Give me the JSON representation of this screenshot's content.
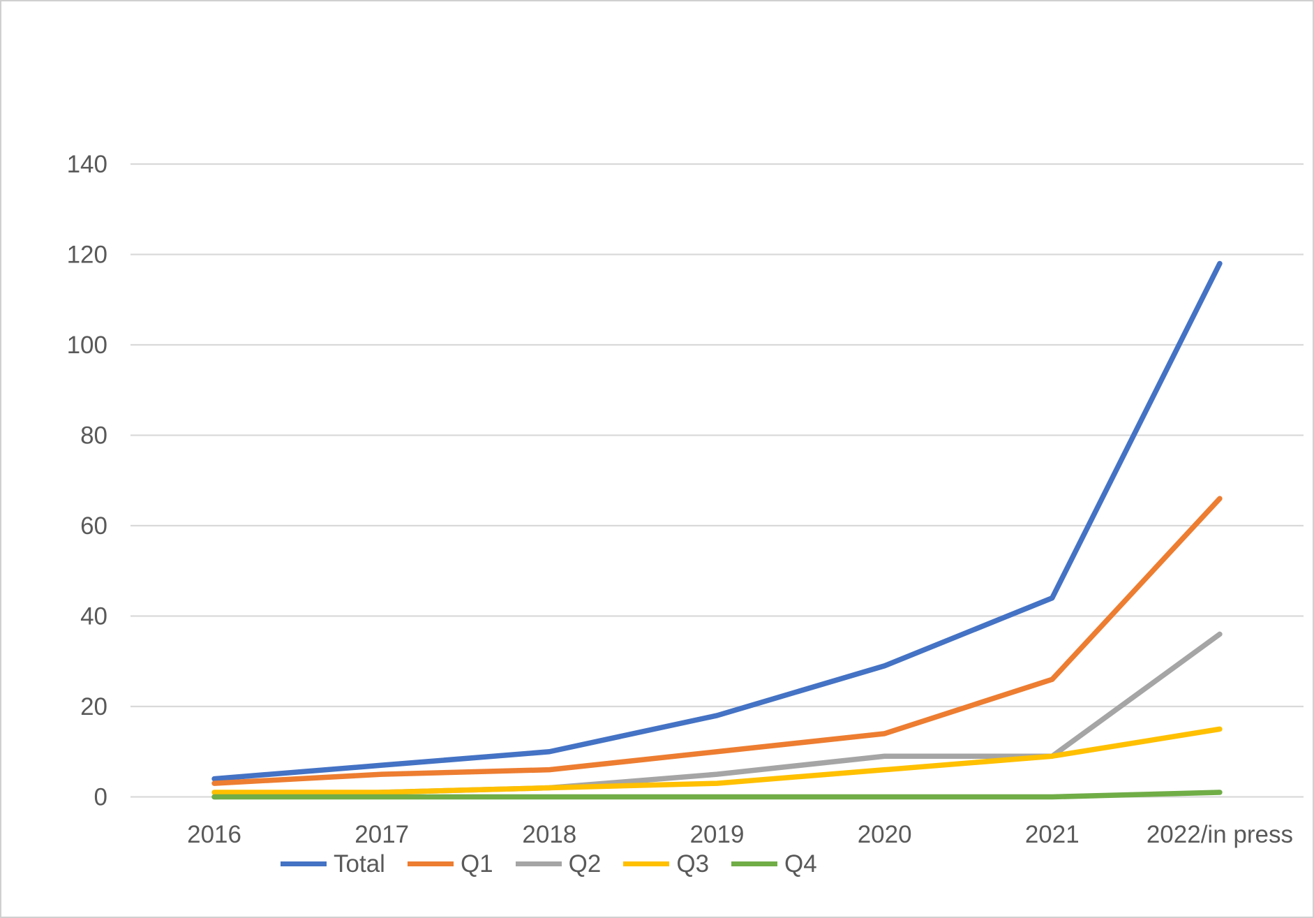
{
  "chart_data": {
    "type": "line",
    "title": "",
    "xlabel": "",
    "ylabel": "",
    "categories": [
      "2016",
      "2017",
      "2018",
      "2019",
      "2020",
      "2021",
      "2022/in press"
    ],
    "series": [
      {
        "name": "Total",
        "color": "#4472C4",
        "values": [
          4,
          7,
          10,
          18,
          29,
          44,
          118
        ]
      },
      {
        "name": "Q1",
        "color": "#ED7D31",
        "values": [
          3,
          5,
          6,
          10,
          14,
          26,
          66
        ]
      },
      {
        "name": "Q2",
        "color": "#A5A5A5",
        "values": [
          0,
          1,
          2,
          5,
          9,
          9,
          36
        ]
      },
      {
        "name": "Q3",
        "color": "#FFC000",
        "values": [
          1,
          1,
          2,
          3,
          6,
          9,
          15
        ]
      },
      {
        "name": "Q4",
        "color": "#70AD47",
        "values": [
          0,
          0,
          0,
          0,
          0,
          0,
          1
        ]
      }
    ],
    "ylim": [
      0,
      140
    ],
    "yticks": [
      0,
      20,
      40,
      60,
      80,
      100,
      120,
      140
    ],
    "grid": true,
    "legend_position": "bottom"
  },
  "colors": {
    "gridline": "#D9D9D9",
    "tick_label": "#595959",
    "background": "#FFFFFF",
    "frame": "#CFCFCF"
  }
}
